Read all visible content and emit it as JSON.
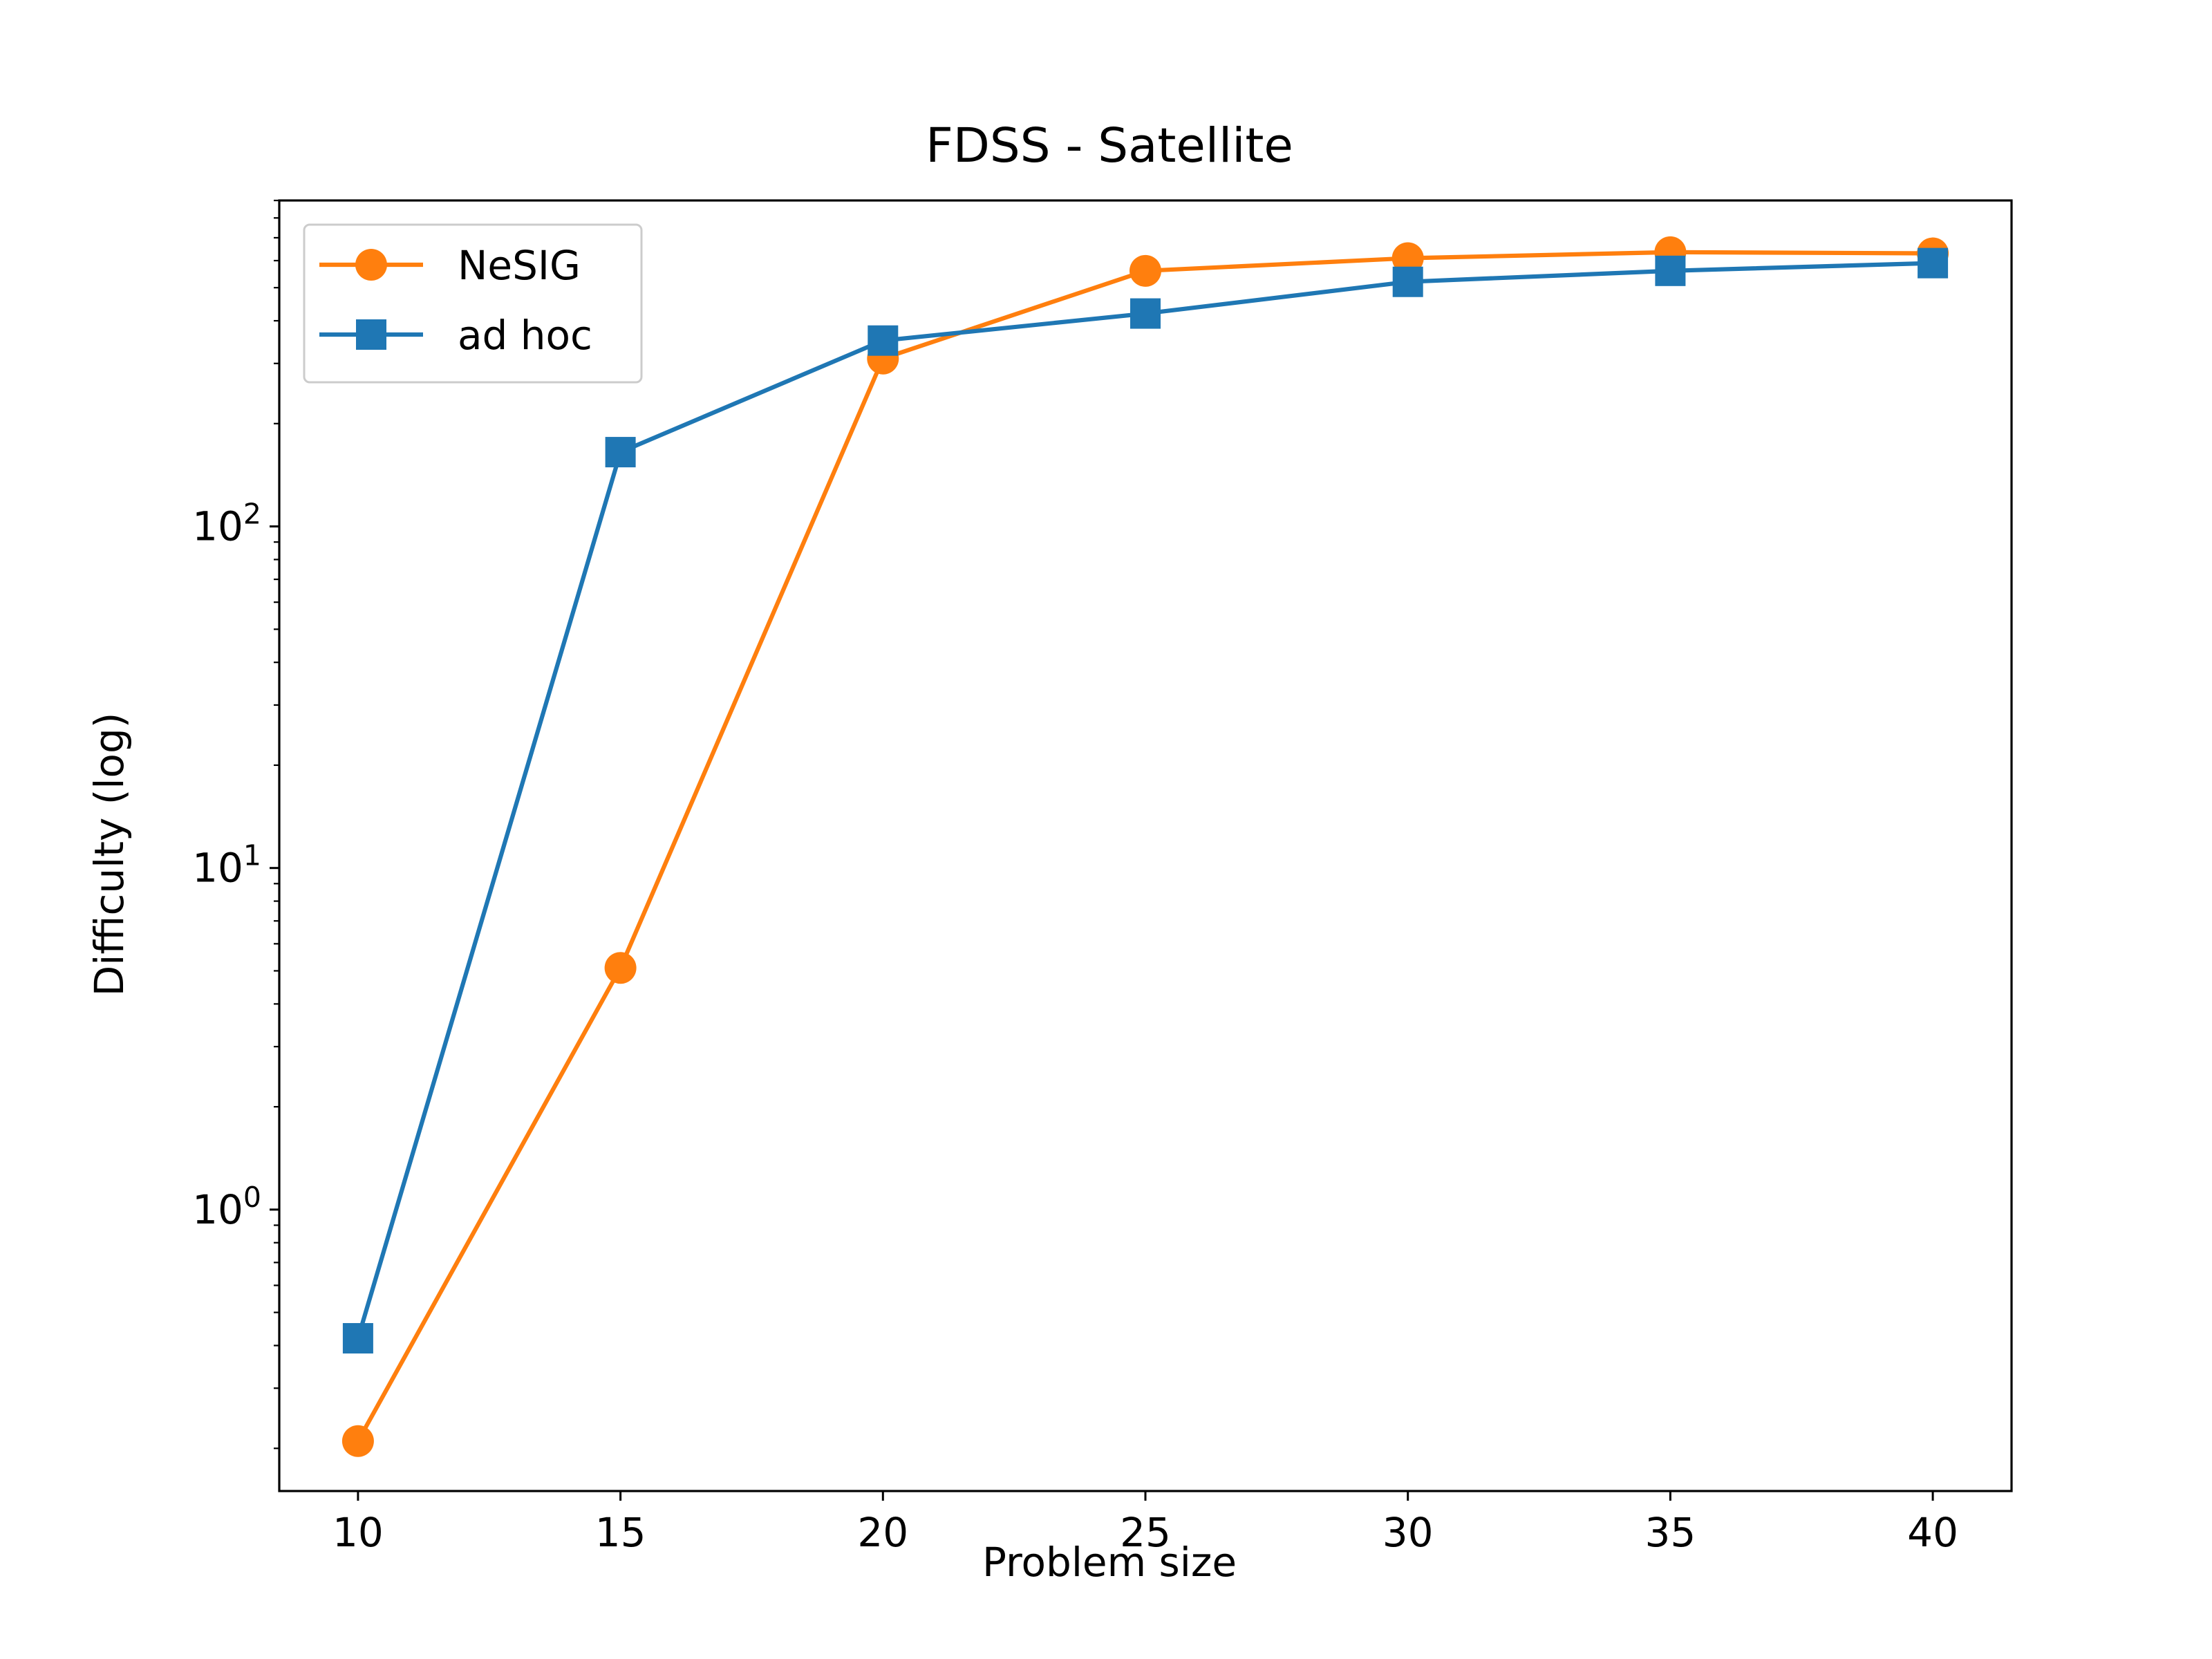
{
  "chart_data": {
    "type": "line",
    "title": "FDSS - Satellite",
    "xlabel": "Problem size",
    "ylabel": "Difficulty (log)",
    "yscale": "log",
    "x": [
      10,
      15,
      20,
      25,
      30,
      35,
      40
    ],
    "x_ticks": [
      10,
      15,
      20,
      25,
      30,
      35,
      40
    ],
    "xlim": [
      8.5,
      41.5
    ],
    "ylim": [
      0.15,
      900
    ],
    "y_ticks": [
      {
        "value": 1,
        "base": "10",
        "exp": "0"
      },
      {
        "value": 10,
        "base": "10",
        "exp": "1"
      },
      {
        "value": 100,
        "base": "10",
        "exp": "2"
      }
    ],
    "series": [
      {
        "name": "NeSIG",
        "color": "#ff7f0e",
        "marker": "circle",
        "values": [
          0.21,
          5.1,
          310,
          560,
          610,
          635,
          630
        ]
      },
      {
        "name": "ad hoc",
        "color": "#1f77b4",
        "marker": "square",
        "values": [
          0.42,
          165,
          350,
          420,
          520,
          560,
          590
        ]
      }
    ],
    "legend": "upper left",
    "grid": false
  }
}
